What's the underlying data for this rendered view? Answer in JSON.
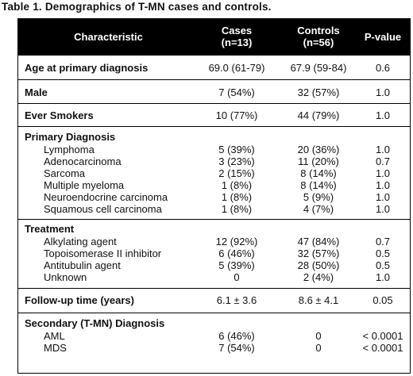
{
  "caption": "Table 1. Demographics of T-MN cases and controls.",
  "header": {
    "characteristic": "Characteristic",
    "cases_line1": "Cases",
    "cases_line2": "(n=13)",
    "controls_line1": "Controls",
    "controls_line2": "(n=56)",
    "pvalue": "P-value"
  },
  "rows": {
    "age": {
      "label": "Age at primary diagnosis",
      "cases": "69.0 (61-79)",
      "controls": "67.9 (59-84)",
      "p": "0.6"
    },
    "male": {
      "label": "Male",
      "cases": "7 (54%)",
      "controls": "32 (57%)",
      "p": "1.0"
    },
    "smokers": {
      "label": "Ever Smokers",
      "cases": "10 (77%)",
      "controls": "44 (79%)",
      "p": "1.0"
    },
    "primary": {
      "label": "Primary Diagnosis",
      "items": [
        {
          "label": "Lymphoma",
          "cases": "5 (39%)",
          "controls": "20 (36%)",
          "p": "1.0"
        },
        {
          "label": "Adenocarcinoma",
          "cases": "3 (23%)",
          "controls": "11 (20%)",
          "p": "0.7"
        },
        {
          "label": "Sarcoma",
          "cases": "2 (15%)",
          "controls": "8 (14%)",
          "p": "1.0"
        },
        {
          "label": "Multiple myeloma",
          "cases": "1 (8%)",
          "controls": "8 (14%)",
          "p": "1.0"
        },
        {
          "label": "Neuroendocrine carcinoma",
          "cases": "1 (8%)",
          "controls": "5 (9%)",
          "p": "1.0"
        },
        {
          "label": "Squamous cell carcinoma",
          "cases": "1 (8%)",
          "controls": "4 (7%)",
          "p": "1.0"
        }
      ]
    },
    "treatment": {
      "label": "Treatment",
      "items": [
        {
          "label": "Alkylating agent",
          "cases": "12 (92%)",
          "controls": "47 (84%)",
          "p": "0.7"
        },
        {
          "label": "Topoisomerase II inhibitor",
          "cases": "6 (46%)",
          "controls": "32 (57%)",
          "p": "0.5"
        },
        {
          "label": "Antitubulin agent",
          "cases": "5 (39%)",
          "controls": "28 (50%)",
          "p": "0.5"
        },
        {
          "label": "Unknown",
          "cases": "0",
          "controls": "2 (4%)",
          "p": "1.0"
        }
      ]
    },
    "followup": {
      "label": "Follow-up time (years)",
      "cases": "6.1 ± 3.6",
      "controls": "8.6 ± 4.1",
      "p": "0.05"
    },
    "secondary": {
      "label": "Secondary (T-MN) Diagnosis",
      "items": [
        {
          "label": "AML",
          "cases": "6 (46%)",
          "controls": "0",
          "p": "< 0.0001"
        },
        {
          "label": "MDS",
          "cases": "7 (54%)",
          "controls": "0",
          "p": "< 0.0001"
        }
      ]
    }
  }
}
